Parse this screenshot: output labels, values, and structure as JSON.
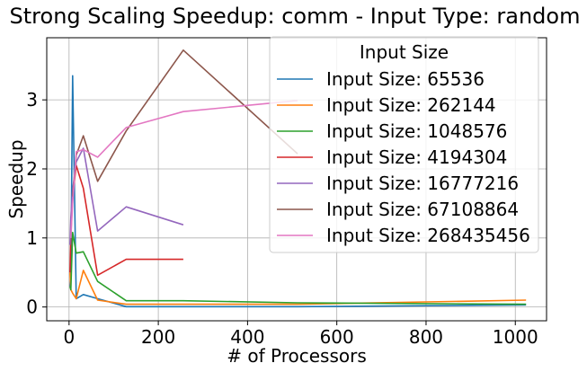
{
  "chart_data": {
    "type": "line",
    "title": "Strong Scaling Speedup: comm - Input Type: random",
    "xlabel": "# of Processors",
    "ylabel": "Speedup",
    "xlim": [
      -50,
      1070
    ],
    "ylim": [
      -0.2,
      3.9
    ],
    "xticks": [
      0,
      200,
      400,
      600,
      800,
      1000
    ],
    "yticks": [
      0,
      1,
      2,
      3
    ],
    "grid": true,
    "legend": {
      "title": "Input Size",
      "placement": "top-right"
    },
    "series": [
      {
        "name": "Input Size: 65536",
        "color": "#1f77b4",
        "x": [
          2,
          4,
          8,
          16,
          32,
          64,
          128,
          256,
          512,
          1024
        ],
        "y": [
          0.3,
          0.5,
          3.35,
          0.12,
          0.18,
          0.12,
          0.005,
          0.005,
          0.005,
          0.03
        ]
      },
      {
        "name": "Input Size: 262144",
        "color": "#ff7f0e",
        "x": [
          2,
          4,
          8,
          16,
          32,
          64,
          128,
          256,
          512,
          1024
        ],
        "y": [
          0.5,
          0.25,
          0.2,
          0.12,
          0.53,
          0.1,
          0.04,
          0.04,
          0.04,
          0.1
        ]
      },
      {
        "name": "Input Size: 1048576",
        "color": "#2ca02c",
        "x": [
          2,
          4,
          8,
          16,
          32,
          64,
          128,
          256,
          512,
          1024
        ],
        "y": [
          0.3,
          0.25,
          1.08,
          0.78,
          0.8,
          0.37,
          0.09,
          0.09,
          0.06,
          0.04
        ]
      },
      {
        "name": "Input Size: 4194304",
        "color": "#d62728",
        "x": [
          2,
          4,
          8,
          16,
          32,
          64,
          128,
          256
        ],
        "y": [
          0.5,
          1.05,
          1.6,
          2.05,
          1.72,
          0.46,
          0.69,
          0.69
        ]
      },
      {
        "name": "Input Size: 16777216",
        "color": "#9467bd",
        "x": [
          2,
          4,
          8,
          16,
          32,
          64,
          128,
          256
        ],
        "y": [
          0.9,
          1.3,
          1.7,
          2.1,
          2.3,
          1.1,
          1.45,
          1.19
        ]
      },
      {
        "name": "Input Size: 67108864",
        "color": "#8c564b",
        "x": [
          8,
          16,
          32,
          64,
          128,
          256,
          512
        ],
        "y": [
          1.6,
          2.2,
          2.48,
          1.82,
          2.55,
          3.72,
          2.22
        ]
      },
      {
        "name": "Input Size: 268435456",
        "color": "#e377c2",
        "x": [
          4,
          8,
          16,
          32,
          64,
          128,
          256,
          512
        ],
        "y": [
          1.0,
          1.5,
          2.25,
          2.28,
          2.17,
          2.6,
          2.83,
          2.99
        ]
      }
    ]
  }
}
